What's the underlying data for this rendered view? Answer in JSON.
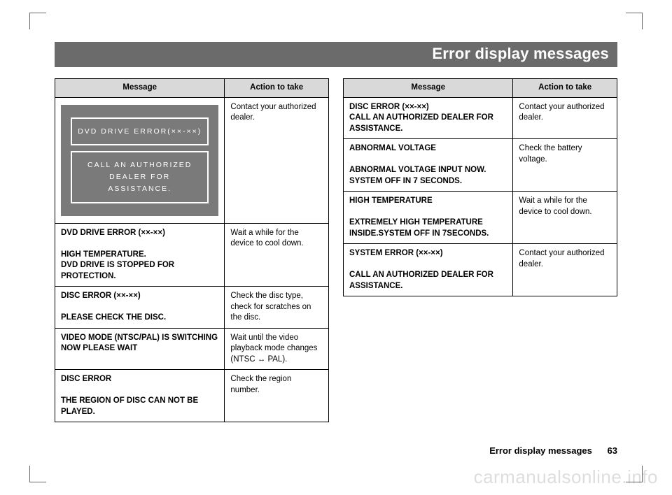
{
  "page": {
    "title": "Error display messages",
    "footer_title": "Error display messages",
    "page_number": "63",
    "watermark": "carmanualsonline.info"
  },
  "table_left": {
    "columns": [
      "Message",
      "Action to take"
    ],
    "header_bg": "#d9d9d9",
    "rows": [
      {
        "display_box1": "DVD DRIVE ERROR(××-××)",
        "display_box2_line1": "CALL AN AUTHORIZED",
        "display_box2_line2": "DEALER FOR ASSISTANCE.",
        "action": "Contact your authorized  dealer."
      },
      {
        "msg_line1": "DVD DRIVE ERROR (××-××)",
        "msg_line2": "HIGH TEMPERATURE.",
        "msg_line3": "DVD  DRIVE IS STOPPED  FOR PROTECTION.",
        "action": "Wait a while for the device to cool down."
      },
      {
        "msg_line1": "DISC ERROR (××-××)",
        "msg_line2": "PLEASE CHECK THE DISC.",
        "action": "Check the disc type, check for scratches on the disc."
      },
      {
        "msg_line1": "VIDEO MODE (NTSC/PAL) IS SWITCHING NOW PLEASE WAIT",
        "action_pre": "Wait until the video playback mode changes (NTSC ",
        "action_post": "  PAL)."
      },
      {
        "msg_line1": "DISC  ERROR",
        "msg_line2": "THE REGION OF DISC CAN NOT BE PLAYED.",
        "action": "Check the region number."
      }
    ]
  },
  "table_right": {
    "columns": [
      "Message",
      "Action to take"
    ],
    "header_bg": "#d9d9d9",
    "rows": [
      {
        "msg_line1": "DISC ERROR (××-××)",
        "msg_line2": "CALL AN AUTHORIZED DEALER FOR ASSISTANCE.",
        "action": "Contact your authorized dealer."
      },
      {
        "msg_line1": "ABNORMAL  VOLTAGE",
        "msg_line2": "ABNORMAL  VOLTAGE INPUT NOW. SYSTEM OFF IN 7  SECONDS.",
        "action": "Check the battery voltage."
      },
      {
        "msg_line1": "HIGH  TEMPERATURE",
        "msg_line2": "EXTREMELY  HIGH  TEMPERATURE INSIDE.SYSTEM OFF IN 7SECONDS.",
        "action": "Wait a while for the device to cool down."
      },
      {
        "msg_line1": "SYSTEM  ERROR (××-××)",
        "msg_line2": "CALL AN AUTHORIZED   DEALER  FOR  ASSISTANCE.",
        "action": "Contact your authorized dealer."
      }
    ]
  },
  "style": {
    "title_bar_bg": "#6b6b6b",
    "title_bar_color": "#ffffff",
    "display_bg": "#7a7a7a",
    "border_color": "#000000"
  }
}
